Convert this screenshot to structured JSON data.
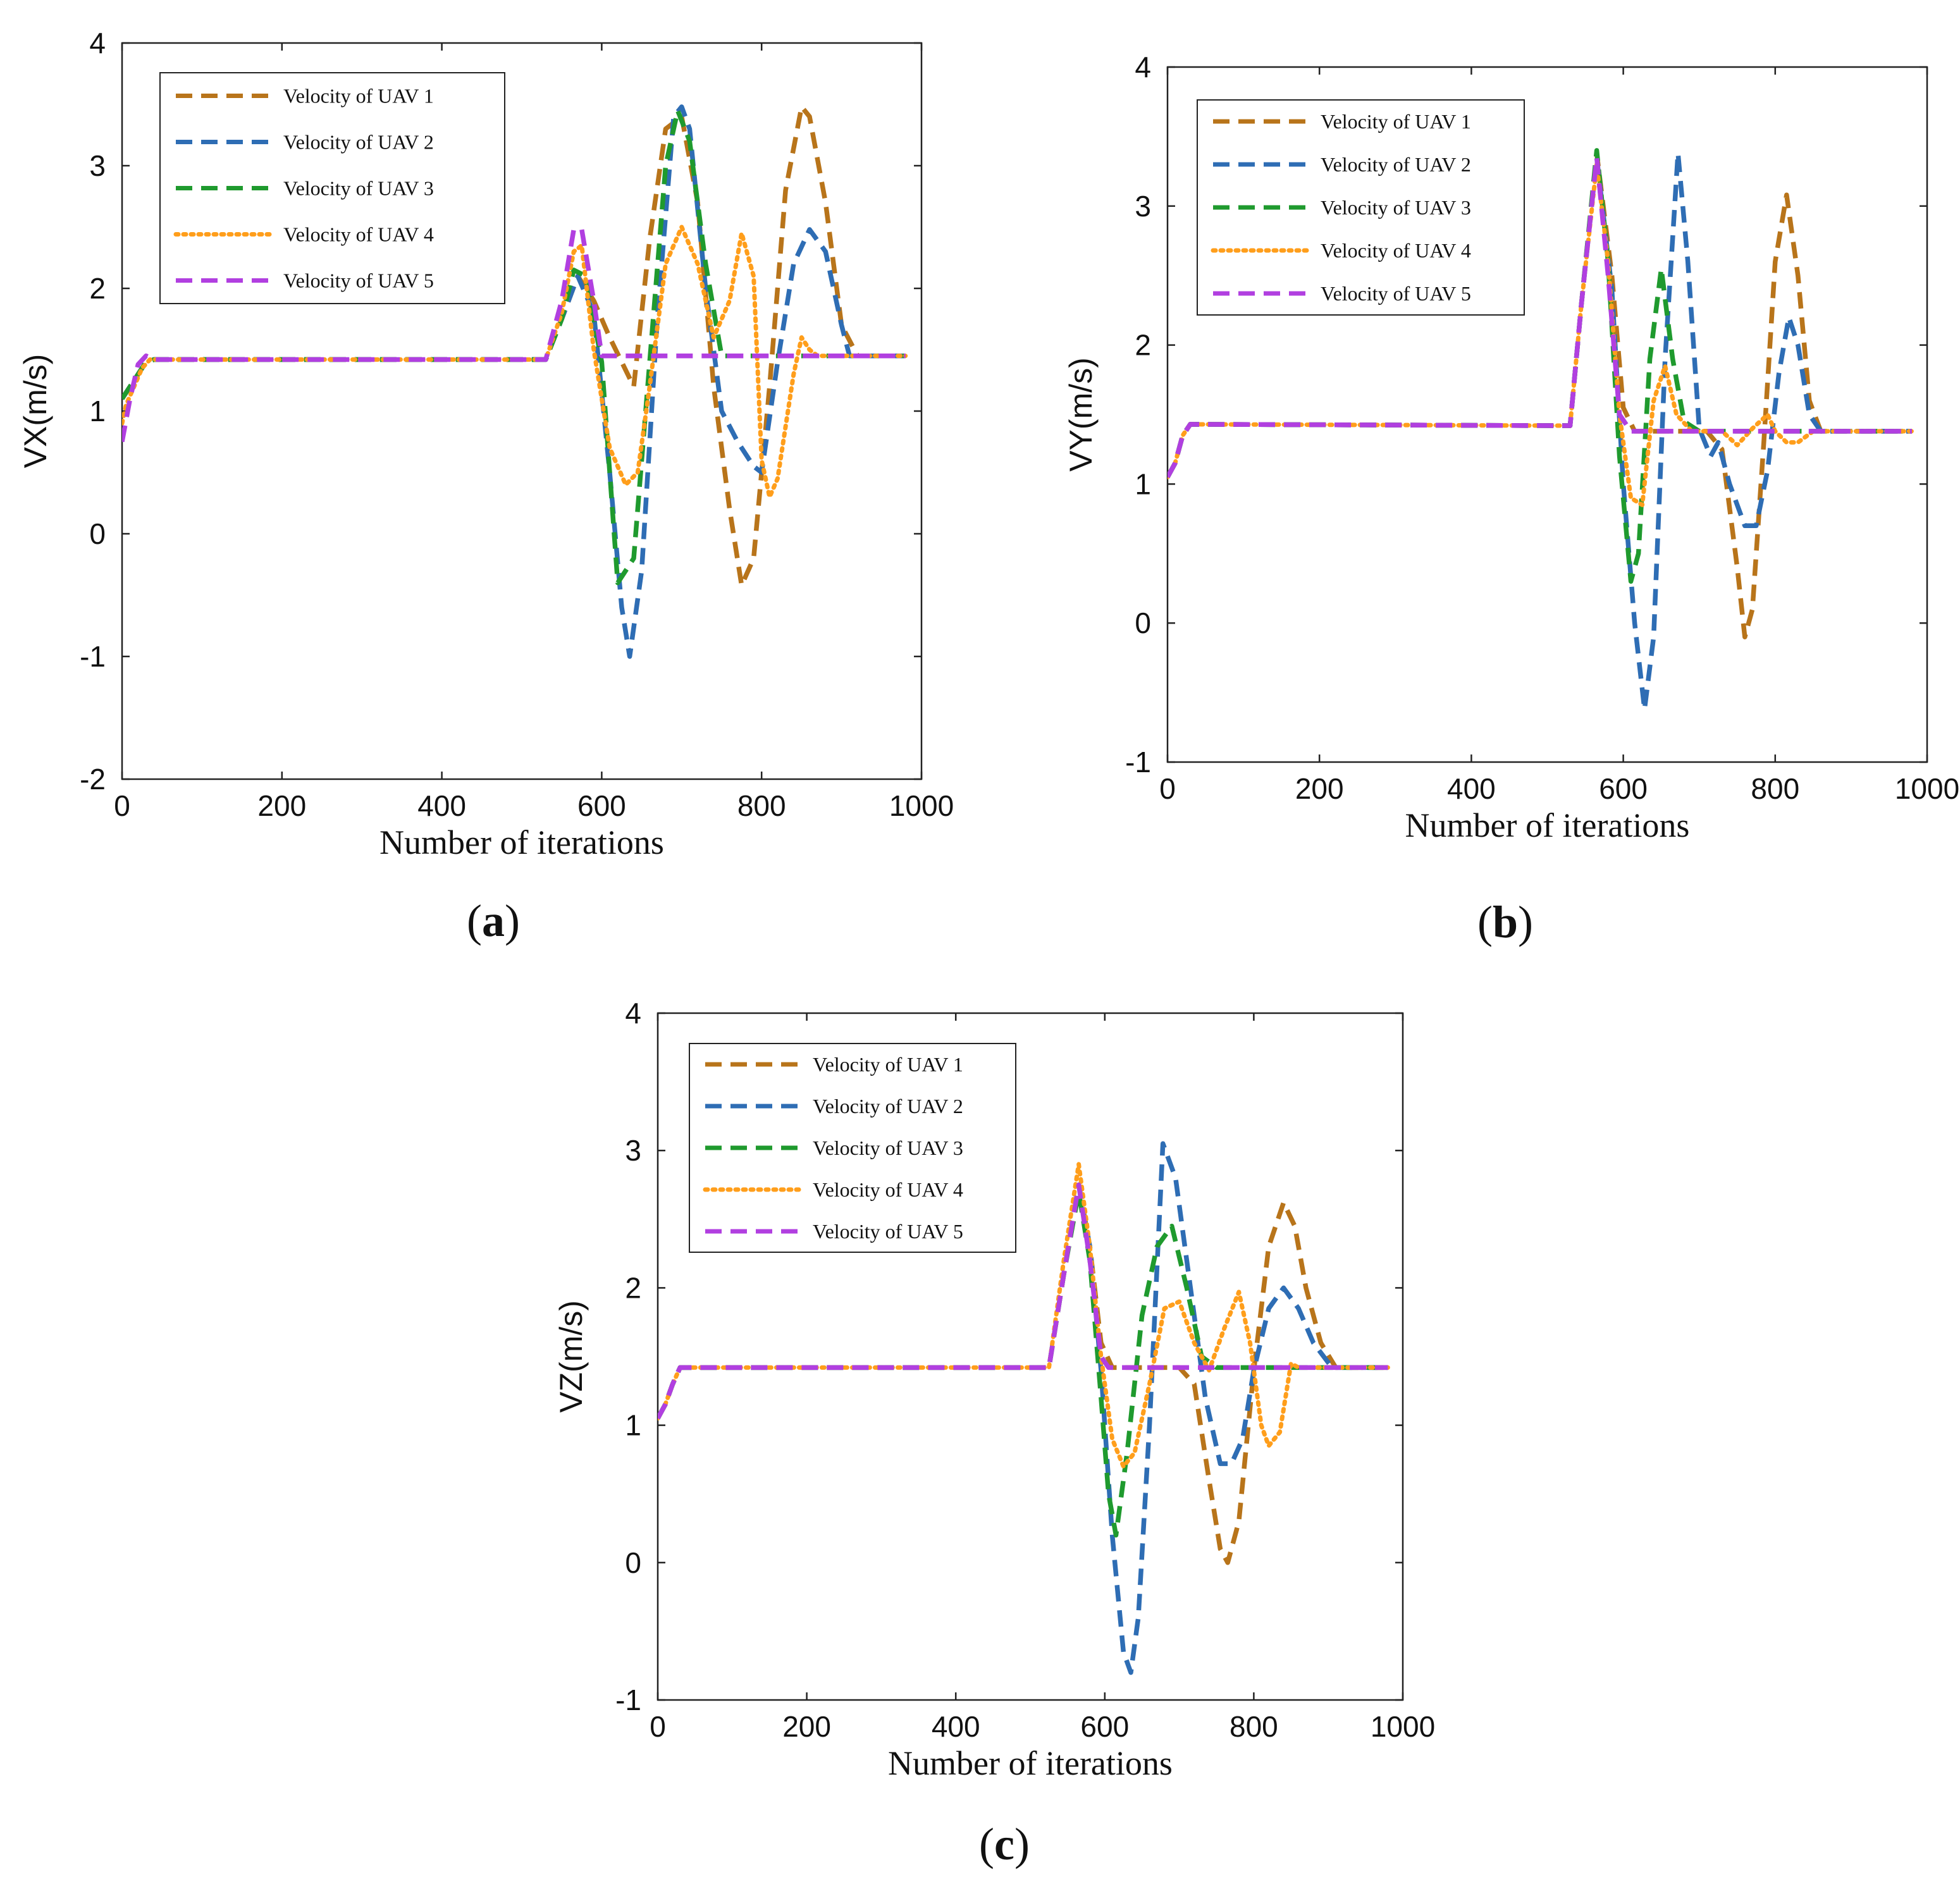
{
  "series_styles": [
    {
      "name": "Velocity of UAV 1",
      "color": "#B8741A",
      "dash": "dash"
    },
    {
      "name": "Velocity of UAV 2",
      "color": "#2E6DB4",
      "dash": "dash"
    },
    {
      "name": "Velocity of UAV 3",
      "color": "#1F9A2E",
      "dash": "dash"
    },
    {
      "name": "Velocity of UAV 4",
      "color": "#FF9E1B",
      "dash": "dot"
    },
    {
      "name": "Velocity of UAV 5",
      "color": "#B13FE0",
      "dash": "dash"
    }
  ],
  "chart_data": [
    {
      "id": "a",
      "type": "line",
      "caption_letter": "a",
      "caption_open": "(",
      "caption_close": ")",
      "xlabel": "Number of iterations",
      "ylabel": "VX(m/s)",
      "xlim": [
        0,
        1000
      ],
      "ylim": [
        -2,
        4
      ],
      "xticks": [
        0,
        200,
        400,
        600,
        800,
        1000
      ],
      "yticks": [
        -2,
        -1,
        0,
        1,
        2,
        3,
        4
      ],
      "xtick_labels": [
        "0",
        "200",
        "400",
        "600",
        "800",
        "1000"
      ],
      "ytick_labels": [
        "-2",
        "-1",
        "0",
        "1",
        "2",
        "3",
        "4"
      ],
      "legend": [
        "Velocity of UAV 1",
        "Velocity of UAV 2",
        "Velocity of UAV 3",
        "Velocity of UAV 4",
        "Velocity of UAV 5"
      ],
      "legend_position": "top-left",
      "series": [
        {
          "name": "Velocity of UAV 1",
          "x": [
            0,
            15,
            30,
            40,
            530,
            550,
            570,
            590,
            610,
            640,
            660,
            680,
            700,
            720,
            740,
            760,
            775,
            790,
            810,
            830,
            850,
            860,
            880,
            900,
            920,
            980
          ],
          "y": [
            1.1,
            1.25,
            1.4,
            1.42,
            1.42,
            1.75,
            2.1,
            1.9,
            1.6,
            1.2,
            2.4,
            3.3,
            3.4,
            2.7,
            1.2,
            0.2,
            -0.42,
            -0.2,
            1.2,
            2.8,
            3.48,
            3.4,
            2.7,
            1.7,
            1.45,
            1.45
          ]
        },
        {
          "name": "Velocity of UAV 2",
          "x": [
            0,
            15,
            30,
            40,
            530,
            550,
            570,
            590,
            610,
            625,
            635,
            650,
            670,
            690,
            700,
            710,
            730,
            750,
            770,
            790,
            800,
            820,
            840,
            860,
            880,
            900,
            910,
            980
          ],
          "y": [
            1.1,
            1.25,
            1.4,
            1.42,
            1.42,
            1.75,
            2.1,
            1.8,
            0.5,
            -0.6,
            -1.0,
            -0.3,
            1.8,
            3.4,
            3.48,
            3.3,
            2.0,
            1.0,
            0.75,
            0.55,
            0.5,
            1.4,
            2.2,
            2.48,
            2.3,
            1.7,
            1.45,
            1.45
          ]
        },
        {
          "name": "Velocity of UAV 3",
          "x": [
            0,
            15,
            30,
            40,
            530,
            550,
            565,
            580,
            600,
            620,
            640,
            660,
            680,
            695,
            710,
            730,
            750,
            760,
            980
          ],
          "y": [
            1.1,
            1.25,
            1.4,
            1.42,
            1.42,
            1.75,
            2.15,
            2.1,
            1.4,
            -0.4,
            -0.2,
            1.4,
            3.0,
            3.45,
            3.2,
            2.2,
            1.45,
            1.45,
            1.45
          ]
        },
        {
          "name": "Velocity of UAV 4",
          "x": [
            0,
            5,
            15,
            25,
            35,
            530,
            550,
            565,
            575,
            590,
            610,
            630,
            645,
            660,
            680,
            700,
            720,
            740,
            760,
            775,
            790,
            800,
            810,
            820,
            840,
            850,
            860,
            870,
            980
          ],
          "y": [
            0.9,
            1.05,
            1.2,
            1.35,
            1.42,
            1.42,
            1.8,
            2.3,
            2.35,
            1.5,
            0.7,
            0.4,
            0.5,
            1.2,
            2.2,
            2.5,
            2.2,
            1.6,
            1.9,
            2.45,
            2.1,
            0.6,
            0.3,
            0.45,
            1.3,
            1.6,
            1.5,
            1.45,
            1.45
          ]
        },
        {
          "name": "Velocity of UAV 5",
          "x": [
            0,
            10,
            20,
            30,
            40,
            530,
            550,
            565,
            575,
            590,
            600,
            980
          ],
          "y": [
            0.75,
            1.1,
            1.38,
            1.45,
            1.42,
            1.42,
            1.9,
            2.48,
            2.48,
            1.9,
            1.45,
            1.45
          ]
        }
      ]
    },
    {
      "id": "b",
      "type": "line",
      "caption_letter": "b",
      "caption_open": "(",
      "caption_close": ")",
      "xlabel": "Number of iterations",
      "ylabel": "VY(m/s)",
      "xlim": [
        0,
        1000
      ],
      "ylim": [
        -1,
        4
      ],
      "xticks": [
        0,
        200,
        400,
        600,
        800,
        1000
      ],
      "yticks": [
        -1,
        0,
        1,
        2,
        3,
        4
      ],
      "xtick_labels": [
        "0",
        "200",
        "400",
        "600",
        "800",
        "1000"
      ],
      "ytick_labels": [
        "-1",
        "0",
        "1",
        "2",
        "3",
        "4"
      ],
      "legend": [
        "Velocity of UAV 1",
        "Velocity of UAV 2",
        "Velocity of UAV 3",
        "Velocity of UAV 4",
        "Velocity of UAV 5"
      ],
      "legend_position": "top-left",
      "series": [
        {
          "name": "Velocity of UAV 1",
          "x": [
            0,
            10,
            20,
            30,
            530,
            545,
            565,
            585,
            600,
            615,
            630,
            650,
            670,
            690,
            710,
            730,
            750,
            760,
            770,
            785,
            800,
            815,
            830,
            845,
            860,
            980
          ],
          "y": [
            1.05,
            1.15,
            1.35,
            1.43,
            1.42,
            2.3,
            3.38,
            2.5,
            1.55,
            1.38,
            1.38,
            1.38,
            1.38,
            1.38,
            1.38,
            1.25,
            0.4,
            -0.1,
            0.1,
            1.3,
            2.6,
            3.08,
            2.5,
            1.6,
            1.38,
            1.38
          ]
        },
        {
          "name": "Velocity of UAV 2",
          "x": [
            0,
            10,
            20,
            30,
            530,
            545,
            565,
            585,
            600,
            615,
            628,
            640,
            655,
            672,
            685,
            700,
            715,
            725,
            740,
            760,
            775,
            790,
            805,
            818,
            830,
            845,
            860,
            980
          ],
          "y": [
            1.05,
            1.15,
            1.35,
            1.43,
            1.42,
            2.3,
            3.35,
            2.4,
            1.0,
            0.0,
            -0.62,
            -0.1,
            1.9,
            3.38,
            2.6,
            1.4,
            1.2,
            1.3,
            1.0,
            0.7,
            0.7,
            1.1,
            1.8,
            2.2,
            2.0,
            1.5,
            1.38,
            1.38
          ]
        },
        {
          "name": "Velocity of UAV 3",
          "x": [
            0,
            10,
            20,
            30,
            530,
            545,
            565,
            580,
            595,
            610,
            620,
            635,
            650,
            665,
            680,
            700,
            980
          ],
          "y": [
            1.05,
            1.15,
            1.35,
            1.43,
            1.42,
            2.3,
            3.4,
            2.6,
            1.2,
            0.3,
            0.5,
            1.9,
            2.55,
            1.9,
            1.45,
            1.38,
            1.38
          ]
        },
        {
          "name": "Velocity of UAV 4",
          "x": [
            0,
            10,
            20,
            30,
            530,
            545,
            565,
            580,
            595,
            610,
            625,
            640,
            655,
            670,
            690,
            710,
            730,
            750,
            770,
            790,
            800,
            815,
            830,
            850,
            980
          ],
          "y": [
            1.05,
            1.15,
            1.35,
            1.43,
            1.42,
            2.3,
            3.3,
            2.6,
            1.5,
            0.9,
            0.85,
            1.6,
            1.85,
            1.5,
            1.38,
            1.38,
            1.38,
            1.28,
            1.4,
            1.5,
            1.38,
            1.3,
            1.3,
            1.38,
            1.38
          ]
        },
        {
          "name": "Velocity of UAV 5",
          "x": [
            0,
            10,
            20,
            30,
            530,
            545,
            565,
            580,
            595,
            610,
            980
          ],
          "y": [
            1.05,
            1.15,
            1.35,
            1.43,
            1.42,
            2.3,
            3.35,
            2.5,
            1.5,
            1.38,
            1.38
          ]
        }
      ]
    },
    {
      "id": "c",
      "type": "line",
      "caption_letter": "c",
      "caption_open": "(",
      "caption_close": ")",
      "xlabel": "Number of iterations",
      "ylabel": "VZ(m/s)",
      "xlim": [
        0,
        1000
      ],
      "ylim": [
        -1,
        4
      ],
      "xticks": [
        0,
        200,
        400,
        600,
        800,
        1000
      ],
      "yticks": [
        -1,
        0,
        1,
        2,
        3,
        4
      ],
      "xtick_labels": [
        "0",
        "200",
        "400",
        "600",
        "800",
        "1000"
      ],
      "ytick_labels": [
        "-1",
        "0",
        "1",
        "2",
        "3",
        "4"
      ],
      "legend": [
        "Velocity of UAV 1",
        "Velocity of UAV 2",
        "Velocity of UAV 3",
        "Velocity of UAV 4",
        "Velocity of UAV 5"
      ],
      "legend_position": "top-left",
      "series": [
        {
          "name": "Velocity of UAV 1",
          "x": [
            0,
            10,
            20,
            30,
            525,
            545,
            565,
            580,
            595,
            610,
            700,
            720,
            740,
            755,
            765,
            780,
            800,
            820,
            840,
            855,
            870,
            890,
            910,
            980
          ],
          "y": [
            1.05,
            1.15,
            1.3,
            1.42,
            1.42,
            2.1,
            2.75,
            2.3,
            1.6,
            1.42,
            1.42,
            1.3,
            0.6,
            0.1,
            0.0,
            0.3,
            1.4,
            2.3,
            2.62,
            2.45,
            2.0,
            1.6,
            1.42,
            1.42
          ]
        },
        {
          "name": "Velocity of UAV 2",
          "x": [
            0,
            10,
            20,
            30,
            525,
            545,
            565,
            580,
            595,
            610,
            625,
            635,
            645,
            660,
            678,
            695,
            715,
            735,
            755,
            770,
            785,
            800,
            820,
            840,
            860,
            880,
            905,
            980
          ],
          "y": [
            1.05,
            1.15,
            1.3,
            1.42,
            1.42,
            2.1,
            2.75,
            2.3,
            1.4,
            0.2,
            -0.65,
            -0.8,
            -0.4,
            1.0,
            3.05,
            2.8,
            2.0,
            1.2,
            0.72,
            0.72,
            0.9,
            1.4,
            1.85,
            2.0,
            1.85,
            1.6,
            1.42,
            1.42
          ]
        },
        {
          "name": "Velocity of UAV 3",
          "x": [
            0,
            10,
            20,
            30,
            525,
            545,
            565,
            580,
            595,
            605,
            615,
            630,
            650,
            670,
            690,
            710,
            730,
            750,
            980
          ],
          "y": [
            1.05,
            1.15,
            1.3,
            1.42,
            1.42,
            2.1,
            2.7,
            2.2,
            1.2,
            0.5,
            0.2,
            0.8,
            1.8,
            2.3,
            2.45,
            2.0,
            1.5,
            1.42,
            1.42
          ]
        },
        {
          "name": "Velocity of UAV 4",
          "x": [
            0,
            10,
            20,
            30,
            525,
            545,
            565,
            580,
            595,
            610,
            625,
            640,
            660,
            680,
            700,
            720,
            740,
            760,
            780,
            795,
            810,
            820,
            835,
            850,
            860,
            980
          ],
          "y": [
            1.05,
            1.15,
            1.3,
            1.42,
            1.42,
            2.2,
            2.9,
            2.3,
            1.5,
            0.9,
            0.7,
            0.8,
            1.3,
            1.85,
            1.9,
            1.6,
            1.4,
            1.7,
            1.97,
            1.6,
            1.0,
            0.85,
            0.95,
            1.45,
            1.42,
            1.42
          ]
        },
        {
          "name": "Velocity of UAV 5",
          "x": [
            0,
            10,
            20,
            30,
            525,
            545,
            565,
            580,
            595,
            605,
            980
          ],
          "y": [
            1.05,
            1.15,
            1.3,
            1.42,
            1.42,
            2.1,
            2.75,
            2.2,
            1.5,
            1.42,
            1.42
          ]
        }
      ]
    }
  ]
}
